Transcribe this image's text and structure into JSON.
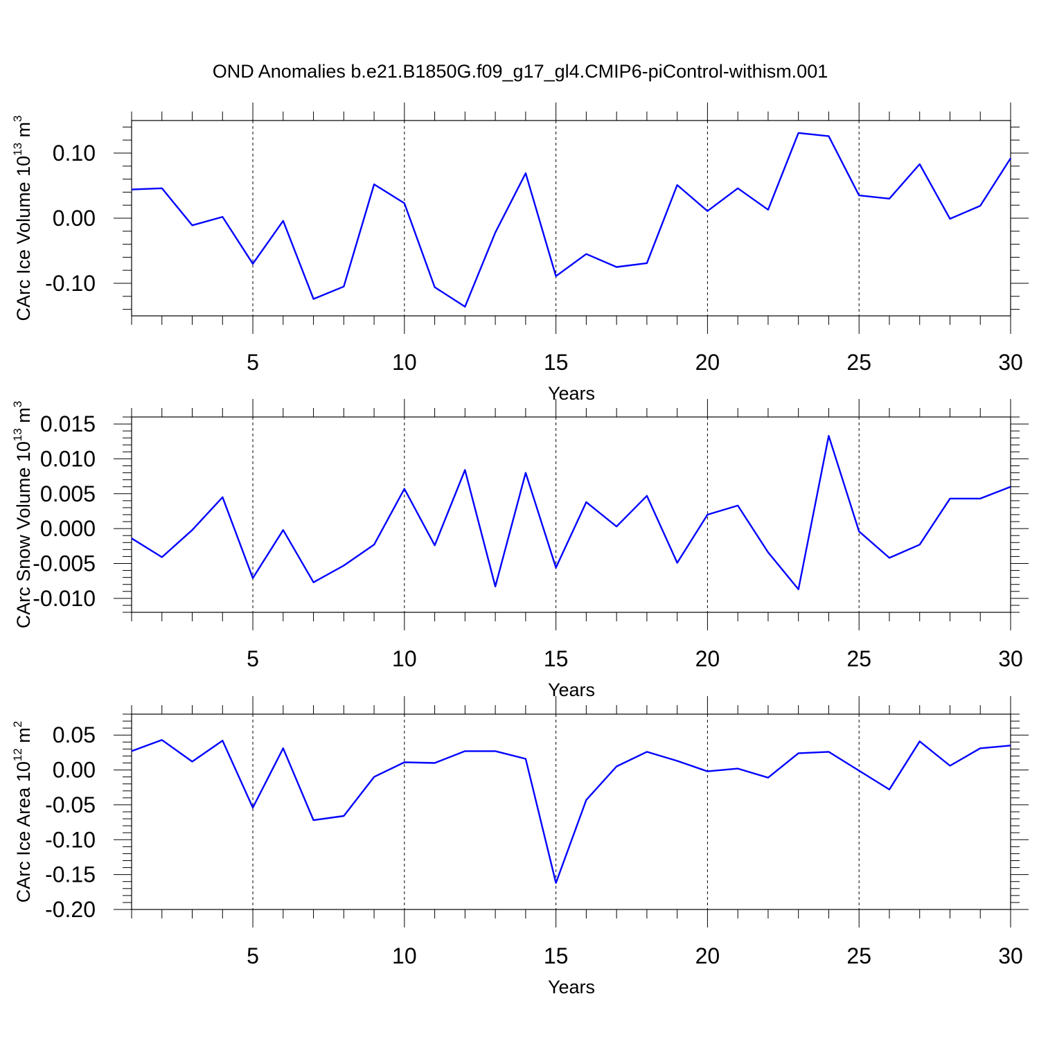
{
  "title": "OND Anomalies b.e21.B1850G.f09_g17_gl4.CMIP6-piControl-withism.001",
  "colors": {
    "line": "#0000ff",
    "axis": "#000000",
    "background": "#ffffff"
  },
  "chart_data": [
    {
      "type": "line",
      "xlabel": "Years",
      "ylabel": {
        "base": "CArc Ice Volume 10",
        "exp": "13",
        "unit": " m",
        "unit_exp": "3"
      },
      "xlim": [
        1,
        30
      ],
      "ylim": [
        -0.15,
        0.15
      ],
      "xticks": [
        5,
        10,
        15,
        20,
        25,
        30
      ],
      "xtick_labels": [
        "5",
        "10",
        "15",
        "20",
        "25",
        "30"
      ],
      "yticks": [
        -0.1,
        0.0,
        0.1
      ],
      "ytick_labels": [
        "-0.10",
        "0.00",
        "0.10"
      ],
      "grid": "vertical dashed at major x ticks",
      "x": [
        1,
        2,
        3,
        4,
        5,
        6,
        7,
        8,
        9,
        10,
        11,
        12,
        13,
        14,
        15,
        16,
        17,
        18,
        19,
        20,
        21,
        22,
        23,
        24,
        25,
        26,
        27,
        28,
        29,
        30
      ],
      "values": [
        0.044,
        0.046,
        -0.011,
        0.002,
        -0.07,
        -0.004,
        -0.124,
        -0.105,
        0.052,
        0.023,
        -0.106,
        -0.136,
        -0.022,
        0.069,
        -0.089,
        -0.055,
        -0.075,
        -0.069,
        0.051,
        0.011,
        0.046,
        0.013,
        0.131,
        0.126,
        0.035,
        0.03,
        0.083,
        -0.001,
        0.019,
        0.092
      ]
    },
    {
      "type": "line",
      "xlabel": "Years",
      "ylabel": {
        "base": "CArc Snow Volume 10",
        "exp": "13",
        "unit": " m",
        "unit_exp": "3"
      },
      "xlim": [
        1,
        30
      ],
      "ylim": [
        -0.012,
        0.016
      ],
      "xticks": [
        5,
        10,
        15,
        20,
        25,
        30
      ],
      "xtick_labels": [
        "5",
        "10",
        "15",
        "20",
        "25",
        "30"
      ],
      "yticks": [
        -0.01,
        -0.005,
        0.0,
        0.005,
        0.01,
        0.015
      ],
      "ytick_labels": [
        "-0.010",
        "-0.005",
        "0.000",
        "0.005",
        "0.010",
        "0.015"
      ],
      "grid": "vertical dashed at major x ticks",
      "x": [
        1,
        2,
        3,
        4,
        5,
        6,
        7,
        8,
        9,
        10,
        11,
        12,
        13,
        14,
        15,
        16,
        17,
        18,
        19,
        20,
        21,
        22,
        23,
        24,
        25,
        26,
        27,
        28,
        29,
        30
      ],
      "values": [
        -0.0014,
        -0.0041,
        -0.0002,
        0.0045,
        -0.0071,
        -0.0002,
        -0.0077,
        -0.0053,
        -0.0023,
        0.0057,
        -0.0024,
        0.0084,
        -0.0083,
        0.008,
        -0.0056,
        0.0038,
        0.0003,
        0.0047,
        -0.0049,
        0.002,
        0.0033,
        -0.0034,
        -0.0087,
        0.0133,
        -0.0004,
        -0.0042,
        -0.0023,
        0.0043,
        0.0043,
        0.006
      ]
    },
    {
      "type": "line",
      "xlabel": "Years",
      "ylabel": {
        "base": "CArc Ice Area 10",
        "exp": "12",
        "unit": " m",
        "unit_exp": "2"
      },
      "xlim": [
        1,
        30
      ],
      "ylim": [
        -0.2,
        0.08
      ],
      "xticks": [
        5,
        10,
        15,
        20,
        25,
        30
      ],
      "xtick_labels": [
        "5",
        "10",
        "15",
        "20",
        "25",
        "30"
      ],
      "yticks": [
        -0.2,
        -0.15,
        -0.1,
        -0.05,
        0.0,
        0.05
      ],
      "ytick_labels": [
        "-0.20",
        "-0.15",
        "-0.10",
        "-0.05",
        "0.00",
        "0.05"
      ],
      "grid": "vertical dashed at major x ticks",
      "x": [
        1,
        2,
        3,
        4,
        5,
        6,
        7,
        8,
        9,
        10,
        11,
        12,
        13,
        14,
        15,
        16,
        17,
        18,
        19,
        20,
        21,
        22,
        23,
        24,
        25,
        26,
        27,
        28,
        29,
        30
      ],
      "values": [
        0.027,
        0.043,
        0.012,
        0.042,
        -0.054,
        0.031,
        -0.072,
        -0.066,
        -0.01,
        0.011,
        0.01,
        0.027,
        0.027,
        0.016,
        -0.162,
        -0.043,
        0.005,
        0.026,
        0.013,
        -0.002,
        0.002,
        -0.011,
        0.024,
        0.026,
        -0.001,
        -0.028,
        0.041,
        0.006,
        0.031,
        0.035
      ]
    }
  ]
}
